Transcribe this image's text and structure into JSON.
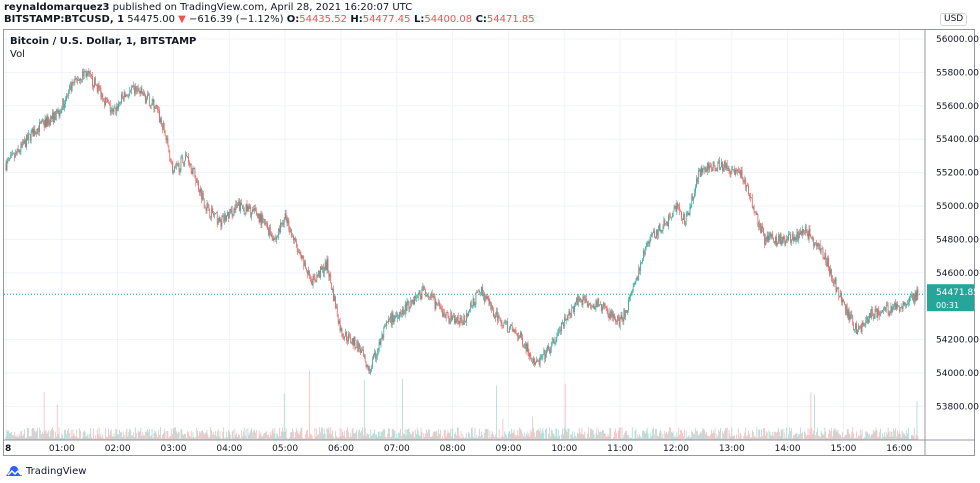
{
  "header": {
    "author": "reynaldomarquez3",
    "published": " published on TradingView.com, April 28, 2021 16:20:07 UTC",
    "symbol": "BITSTAMP:BTCUSD, 1",
    "last": " 54475.00 ",
    "change": " −616.39 (−1.12%) ",
    "o_label": "O:",
    "o": "54435.52",
    "h_label": " H:",
    "h": "54477.45",
    "l_label": " L:",
    "l": "54400.08",
    "c_label": " C:",
    "c": "54471.85",
    "arrow": "▼"
  },
  "legend": {
    "title": "Bitcoin / U.S. Dollar, 1, BITSTAMP",
    "vol": "Vol"
  },
  "currency": "USD",
  "price_label": {
    "price": "54471.85",
    "countdown": "00:31"
  },
  "footer": {
    "brand": "TradingView"
  },
  "colors": {
    "up": "#26a69a",
    "down": "#ef5350"
  },
  "chart_data": {
    "type": "candlestick",
    "title": "Bitcoin / U.S. Dollar, 1, BITSTAMP",
    "interval": "1 minute",
    "ylim": [
      53650,
      56060
    ],
    "yticks": [
      "56000.00",
      "55800.00",
      "55600.00",
      "55400.00",
      "55200.00",
      "55000.00",
      "54800.00",
      "54600.00",
      "54200.00",
      "54000.00",
      "53800.00"
    ],
    "ytick_values": [
      56000,
      55800,
      55600,
      55400,
      55200,
      55000,
      54800,
      54600,
      54200,
      54000,
      53800
    ],
    "xticks": [
      "8",
      "01:00",
      "02:00",
      "03:00",
      "04:00",
      "05:00",
      "06:00",
      "07:00",
      "08:00",
      "09:00",
      "10:00",
      "11:00",
      "12:00",
      "13:00",
      "14:00",
      "15:00",
      "16:00"
    ],
    "xtick_minutes": [
      0,
      60,
      120,
      180,
      240,
      300,
      360,
      420,
      480,
      540,
      600,
      660,
      720,
      780,
      840,
      900,
      960
    ],
    "last_price": 54471.85,
    "path_minutes": [
      0,
      10,
      30,
      55,
      75,
      85,
      100,
      115,
      125,
      140,
      160,
      170,
      180,
      195,
      215,
      230,
      250,
      270,
      290,
      300,
      315,
      330,
      345,
      360,
      380,
      390,
      410,
      430,
      450,
      470,
      490,
      510,
      525,
      555,
      570,
      585,
      600,
      615,
      640,
      660,
      675,
      690,
      710,
      720,
      730,
      745,
      765,
      790,
      800,
      815,
      840,
      860,
      880,
      900,
      915,
      930,
      960,
      980
    ],
    "path_prices": [
      55250,
      55300,
      55450,
      55550,
      55750,
      55800,
      55700,
      55550,
      55650,
      55700,
      55600,
      55450,
      55200,
      55300,
      55000,
      54900,
      55000,
      54950,
      54800,
      54950,
      54700,
      54550,
      54650,
      54250,
      54150,
      54000,
      54300,
      54400,
      54500,
      54350,
      54300,
      54500,
      54350,
      54200,
      54050,
      54150,
      54300,
      54450,
      54400,
      54300,
      54500,
      54800,
      54900,
      55000,
      54900,
      55200,
      55250,
      55200,
      55050,
      54800,
      54800,
      54850,
      54700,
      54400,
      54250,
      54350,
      54400,
      54472
    ]
  }
}
